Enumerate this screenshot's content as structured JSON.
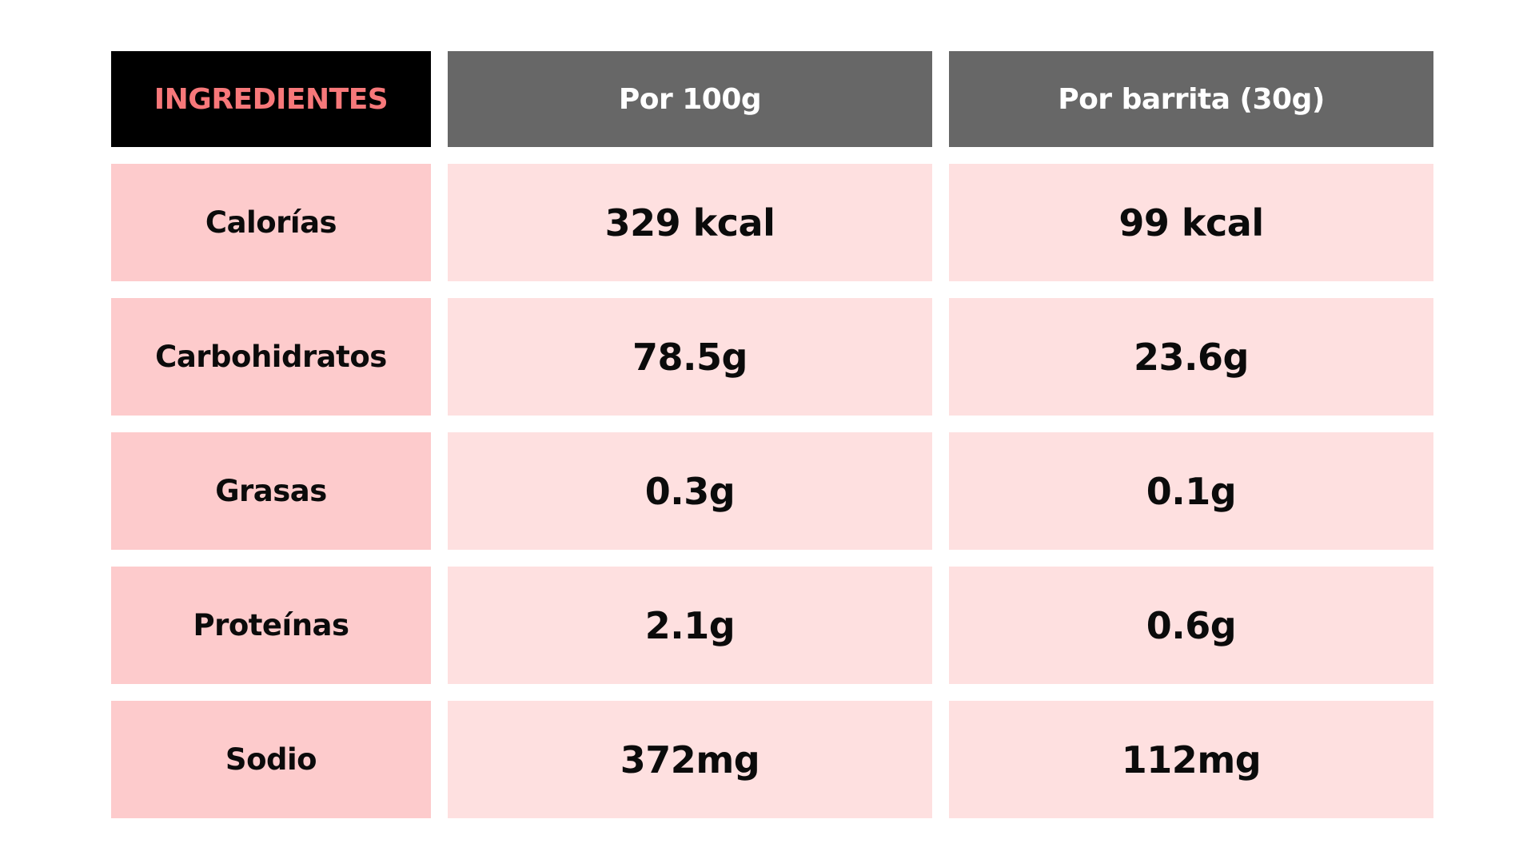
{
  "header": {
    "ingredients_label": "INGREDIENTES",
    "per_100g_label": "Por 100g",
    "per_bar_label": "Por barrita (30g)"
  },
  "rows": [
    {
      "label": "Calorías",
      "per_100g": "329 kcal",
      "per_bar": "99 kcal"
    },
    {
      "label": "Carbohidratos",
      "per_100g": "78.5g",
      "per_bar": "23.6g"
    },
    {
      "label": "Grasas",
      "per_100g": "0.3g",
      "per_bar": "0.1g"
    },
    {
      "label": "Proteínas",
      "per_100g": "2.1g",
      "per_bar": "0.6g"
    },
    {
      "label": "Sodio",
      "per_100g": "372mg",
      "per_bar": "112mg"
    }
  ],
  "colors": {
    "header_label_bg": "#000000",
    "header_label_text": "#f7787a",
    "header_col_bg": "#676767",
    "label_cell_bg": "#fdcbcc",
    "value_cell_bg": "#fee0e0"
  }
}
